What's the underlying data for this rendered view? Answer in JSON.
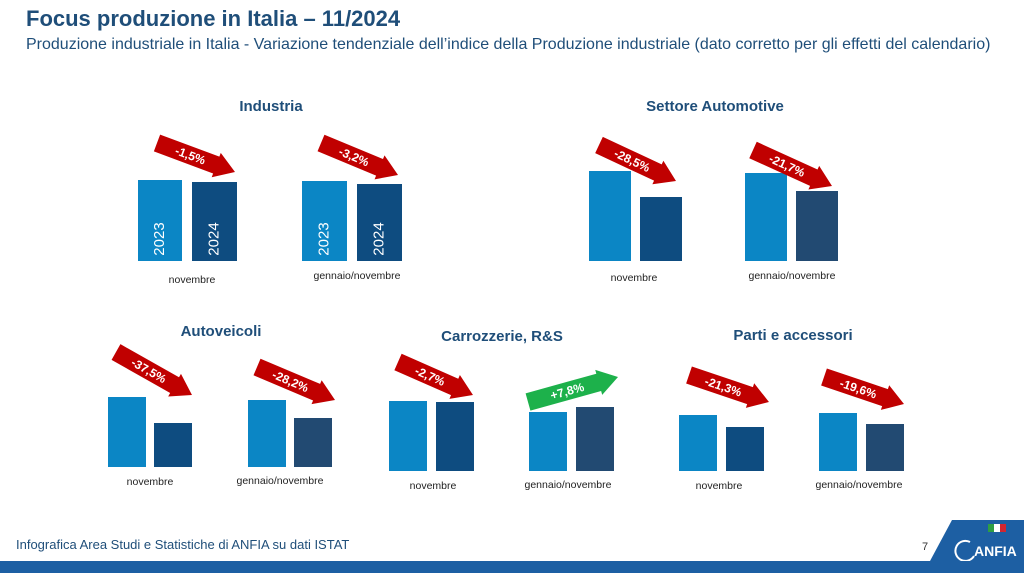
{
  "header": {
    "title": "Focus produzione in Italia – 11/2024",
    "subtitle": "Produzione industriale in Italia - Variazione tendenziale dell’indice della Produzione industriale (dato corretto per gli effetti del calendario)"
  },
  "sections": [
    {
      "title": "Industria"
    },
    {
      "title": "Settore Automotive"
    },
    {
      "title": "Autoveicoli"
    },
    {
      "title": "Carrozzerie, R&S"
    },
    {
      "title": "Parti e accessori"
    }
  ],
  "chart_data": [
    {
      "type": "bar",
      "section": "Industria",
      "categories": [
        "2023",
        "2024"
      ],
      "x_label": "novembre",
      "change": "-1,5%",
      "trend": "down"
    },
    {
      "type": "bar",
      "section": "Industria",
      "categories": [
        "2023",
        "2024"
      ],
      "x_label": "gennaio/novembre",
      "change": "-3,2%",
      "trend": "down"
    },
    {
      "type": "bar",
      "section": "Settore Automotive",
      "x_label": "novembre",
      "change": "-28,5%",
      "trend": "down"
    },
    {
      "type": "bar",
      "section": "Settore Automotive",
      "x_label": "gennaio/novembre",
      "change": "-21,7%",
      "trend": "down"
    },
    {
      "type": "bar",
      "section": "Autoveicoli",
      "x_label": "novembre",
      "change": "-37,5%",
      "trend": "down"
    },
    {
      "type": "bar",
      "section": "Autoveicoli",
      "x_label": "gennaio/novembre",
      "change": "-28,2%",
      "trend": "down"
    },
    {
      "type": "bar",
      "section": "Carrozzerie, R&S",
      "x_label": "novembre",
      "change": "-2,7%",
      "trend": "down"
    },
    {
      "type": "bar",
      "section": "Carrozzerie, R&S",
      "x_label": "gennaio/novembre",
      "change": "+7,8%",
      "trend": "up"
    },
    {
      "type": "bar",
      "section": "Parti e accessori",
      "x_label": "novembre",
      "change": "-21,3%",
      "trend": "down"
    },
    {
      "type": "bar",
      "section": "Parti e accessori",
      "x_label": "gennaio/novembre",
      "change": "-19,6%",
      "trend": "down"
    }
  ],
  "colors": {
    "bar_prev": "#0b86c5",
    "bar_curr": "#0e4c80",
    "bar_curr_alt": "#224a72",
    "arrow_down": "#c00000",
    "arrow_up": "#1db14b",
    "title": "#1f4e79"
  },
  "footer": {
    "text": "Infografica Area Studi e Statistiche di ANFIA su dati ISTAT",
    "page": "7",
    "logo_text": "ANFIA"
  }
}
